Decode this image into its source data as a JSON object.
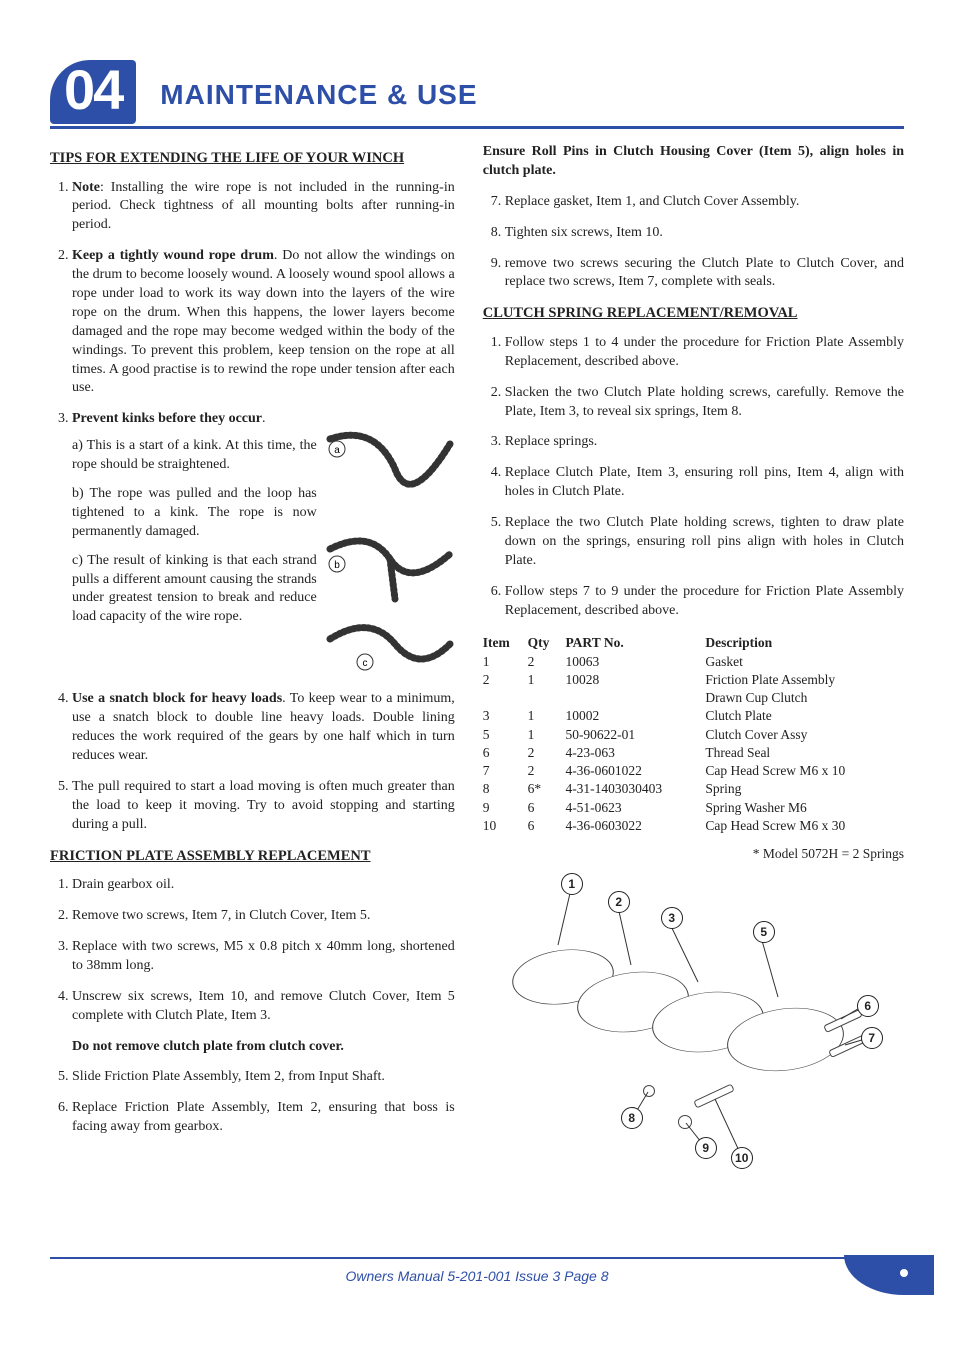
{
  "header": {
    "chapter_number": "04",
    "chapter_title": "MAINTENANCE & USE"
  },
  "colors": {
    "accent": "#2e4fa8",
    "text": "#222222",
    "background": "#ffffff"
  },
  "left_column": {
    "section1": {
      "heading": "TIPS FOR EXTENDING THE LIFE  OF YOUR WINCH",
      "items": [
        {
          "prefix": "Note",
          "prefix_sep": ": ",
          "text": "Installing the wire rope is not included in the running-in period.  Check tightness of all mounting bolts after running-in period."
        },
        {
          "prefix": "Keep a tightly wound rope drum",
          "prefix_sep": ". ",
          "text": "Do not allow the windings on the drum to become loosely wound. A loosely wound spool allows a rope under load to work its way down into the layers of the wire rope on the drum. When this happens, the lower layers become damaged and the rope may become wedged within the body of the windings. To prevent this problem, keep tension on the rope at all times. A good practise is to rewind the rope under tension after each use."
        },
        {
          "prefix": "Prevent kinks before they occur",
          "prefix_sep": ".",
          "text": ""
        },
        {
          "prefix": "Use   a snatch block for heavy loads",
          "prefix_sep": ". ",
          "text": "To keep wear to a minimum, use a snatch block to double line heavy loads. Double lining reduces the work required of the gears by one half which in turn reduces wear."
        },
        {
          "plain": "The pull required to start a load moving is often much greater than the load to keep it moving. Try to avoid stopping and starting during a pull."
        }
      ],
      "kink_sub": {
        "a": "a)   This is a start of a kink. At this time, the rope should be straightened.",
        "b": "b)   The rope was pulled and the loop has tightened to a kink. The rope is now permanently damaged.",
        "c": "c)   The result of kinking is that each strand pulls a different amount causing the strands under greatest tension to break and reduce load capacity of the wire rope."
      },
      "kink_labels": {
        "a": "a",
        "b": "b",
        "c": "c"
      }
    },
    "section2": {
      "heading": "FRICTION PLATE ASSEMBLY REPLACEMENT",
      "items": [
        "Drain gearbox oil.",
        "Remove two screws, Item 7, in Clutch Cover, Item 5.",
        "Replace with two screws, M5 x 0.8 pitch x 40mm long, shortened to 38mm long.",
        "Unscrew six screws, Item 10, and remove Clutch Cover, Item 5 complete with Clutch Plate, Item 3.",
        "Slide Friction Plate Assembly, Item 2, from Input Shaft.",
        "Replace Friction Plate Assembly, Item 2, ensuring that boss is facing away from gearbox."
      ],
      "note_after_4": "Do not remove clutch plate from clutch cover.",
      "list_start_after_note": 5
    }
  },
  "right_column": {
    "lead_bold": "Ensure Roll Pins in Clutch Housing Cover (Item 5), align holes in clutch plate.",
    "cont_list_start": 7,
    "cont_items": [
      "Replace gasket, Item 1, and Clutch Cover Assembly.",
      "Tighten six screws, Item 10.",
      "remove two screws securing the Clutch Plate to Clutch Cover, and  replace two screws, Item 7, complete with seals."
    ],
    "section3": {
      "heading": "CLUTCH SPRING REPLACEMENT/REMOVAL",
      "items": [
        "Follow steps 1 to 4 under the procedure for Friction Plate Assembly Replacement, described above.",
        "Slacken the two Clutch Plate holding screws, carefully. Remove the Plate, Item 3, to reveal six springs, Item 8.",
        "Replace springs.",
        "Replace Clutch Plate, Item 3, ensuring roll pins, Item 4, align with holes in Clutch Plate.",
        "Replace the two Clutch Plate holding screws, tighten to draw plate down on the springs, ensuring roll pins align with holes in Clutch Plate.",
        "Follow steps 7 to 9 under the procedure for Friction Plate Assembly Replacement, described above."
      ]
    },
    "parts_table": {
      "headers": [
        "Item",
        "Qty",
        "PART No.",
        "Description"
      ],
      "rows": [
        [
          "1",
          "2",
          "10063",
          "Gasket"
        ],
        [
          "2",
          "1",
          "10028",
          "Friction Plate Assembly"
        ],
        [
          "",
          "",
          "",
          "Drawn Cup Clutch"
        ],
        [
          "3",
          "1",
          "10002",
          "Clutch Plate"
        ],
        [
          "5",
          "1",
          "50-90622-01",
          "Clutch Cover Assy"
        ],
        [
          "6",
          "2",
          "4-23-063",
          "Thread Seal"
        ],
        [
          "7",
          "2",
          "4-36-0601022",
          "Cap Head Screw M6 x 10"
        ],
        [
          "8",
          "6*",
          "4-31-1403030403",
          "Spring"
        ],
        [
          "9",
          "6",
          "4-51-0623",
          "Spring Washer M6"
        ],
        [
          "10",
          "6",
          "4-36-0603022",
          "Cap Head Screw M6 x 30"
        ]
      ]
    },
    "footnote": "* Model 5072H = 2 Springs",
    "diagram_callouts": [
      "1",
      "2",
      "3",
      "5",
      "6",
      "7",
      "8",
      "9",
      "10"
    ]
  },
  "footer": {
    "text": "Owners Manual 5-201-001 Issue 3      Page   8"
  }
}
